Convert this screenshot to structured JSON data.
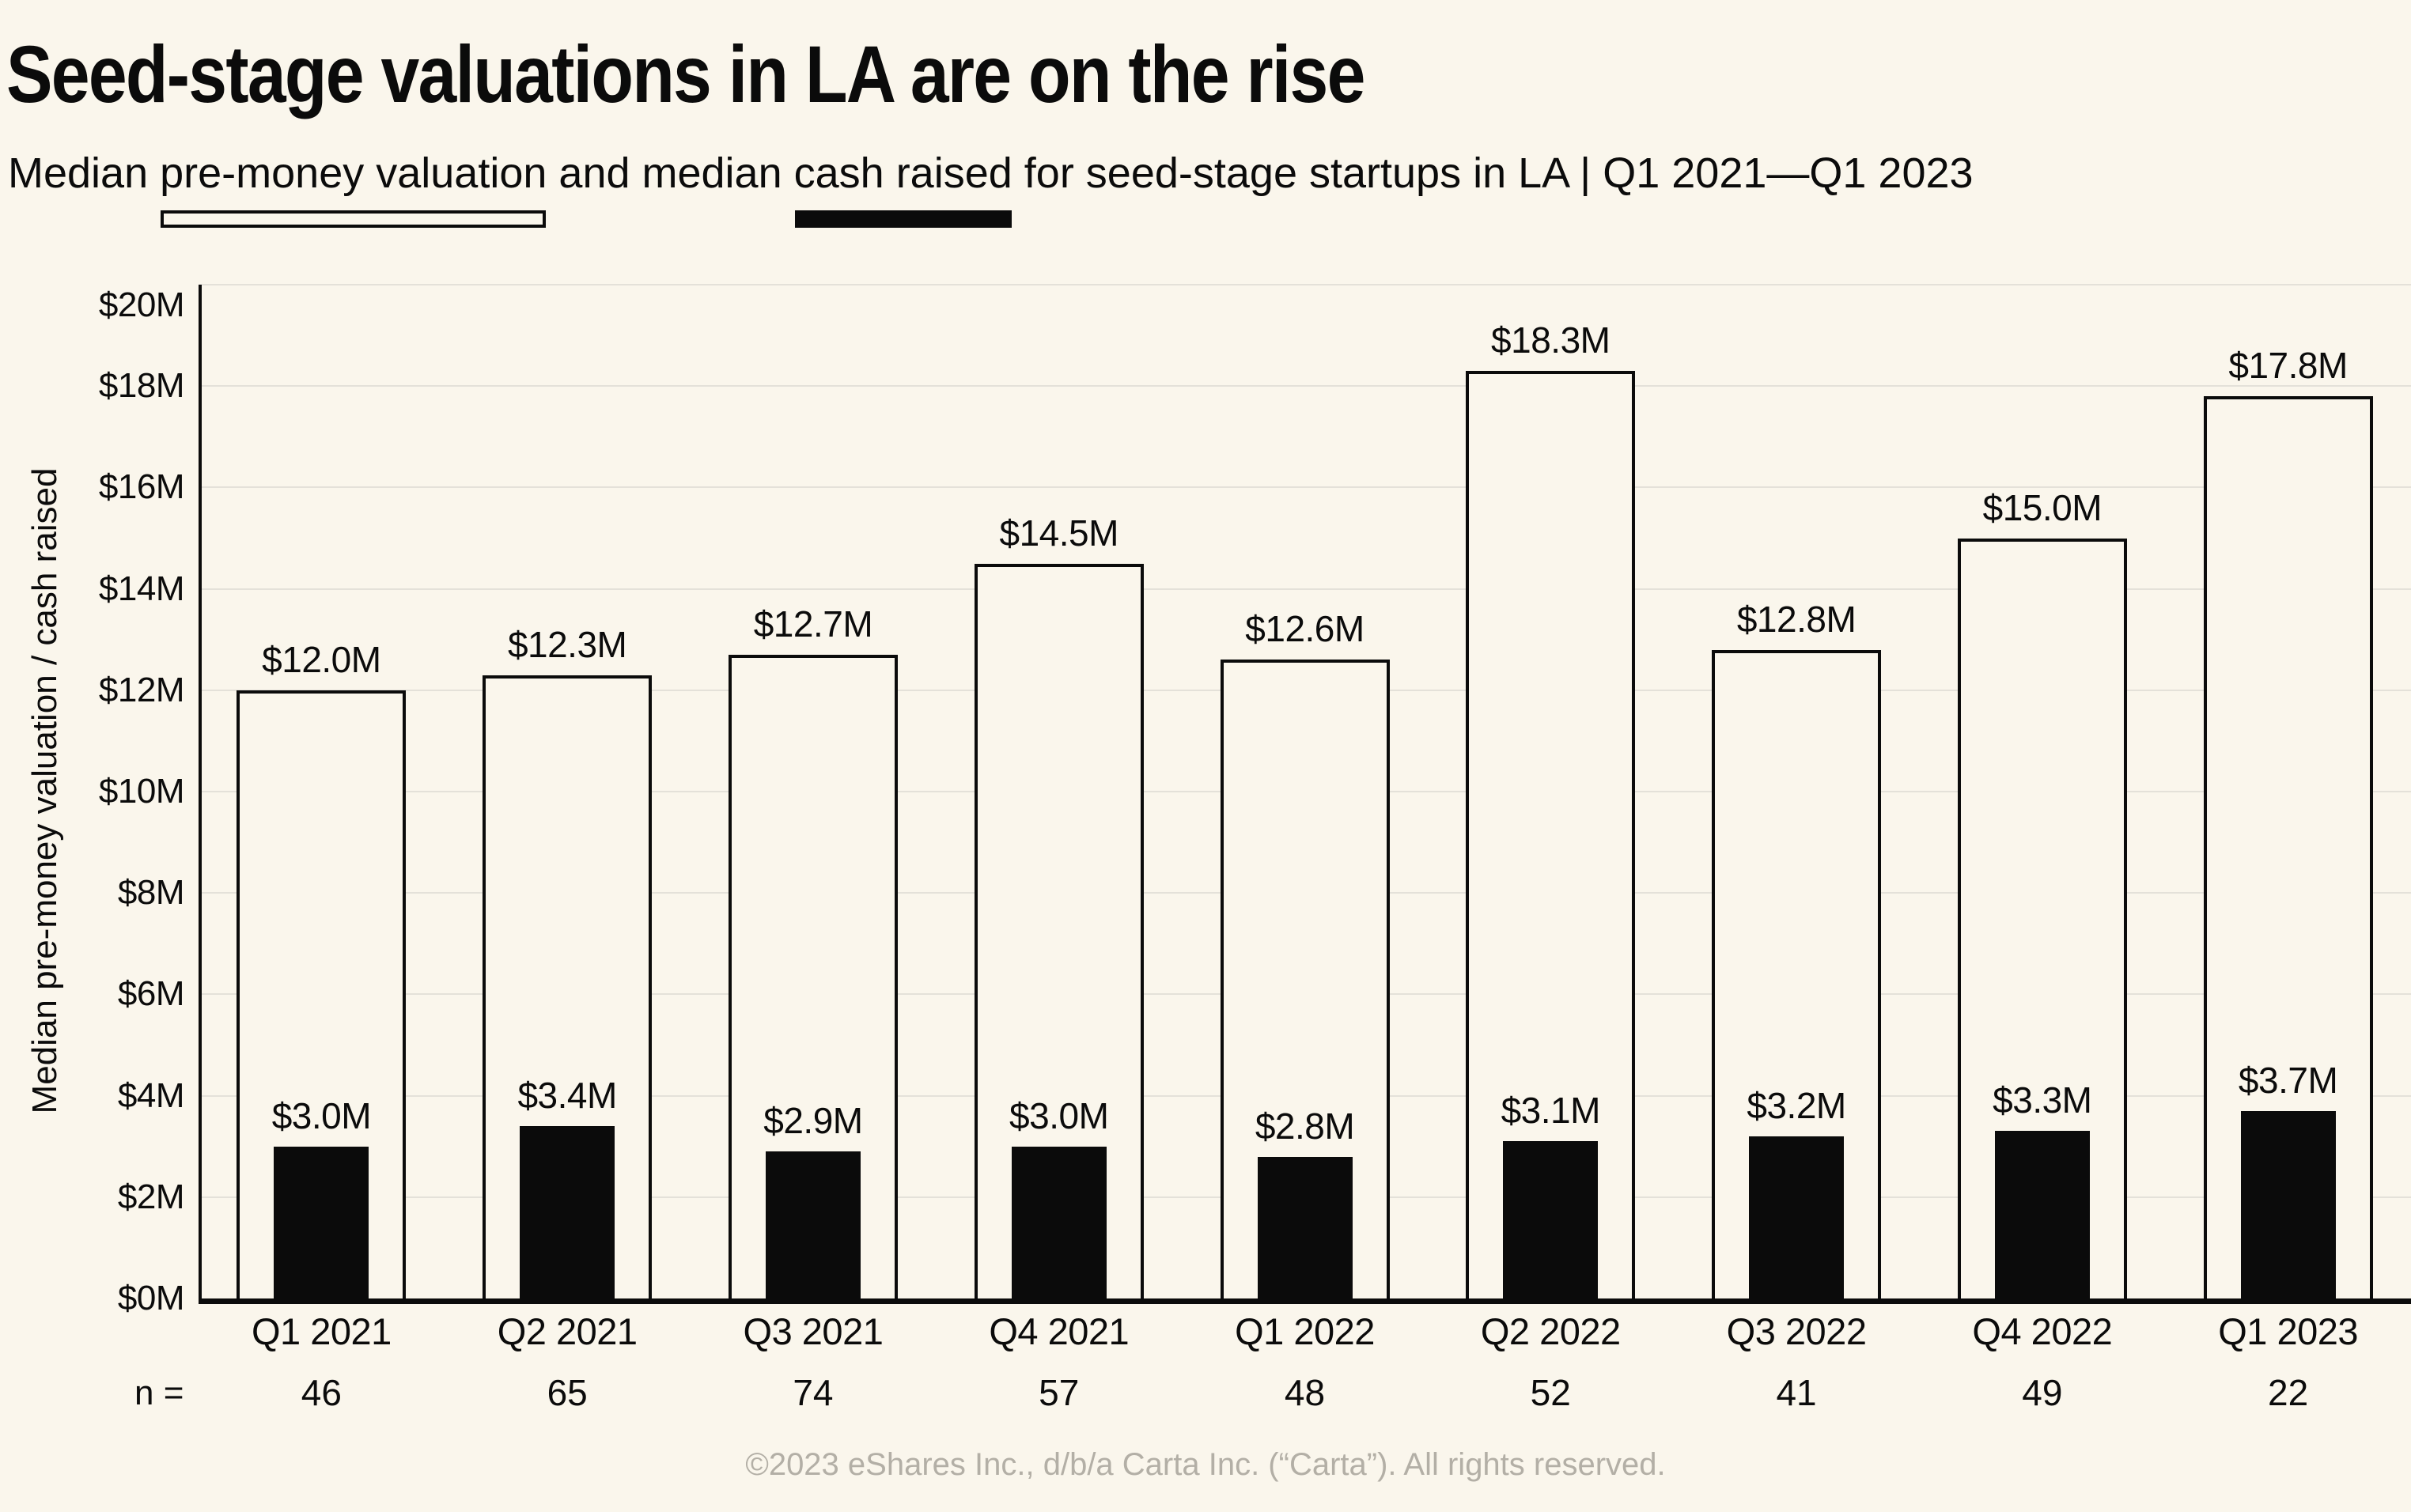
{
  "header": {
    "title": "Seed-stage valuations in LA are on the rise",
    "subtitle": {
      "lead": "Median ",
      "series1": "pre-money valuation",
      "mid": " and median ",
      "series2": "cash raised",
      "tail": " for seed-stage startups in LA | Q1 2021—Q1 2023"
    }
  },
  "chart_data": {
    "type": "bar",
    "title": "Seed-stage valuations in LA are on the rise",
    "subtitle": "Median pre-money valuation and median cash raised for seed-stage startups in LA | Q1 2021—Q1 2023",
    "categories": [
      "Q1 2021",
      "Q2 2021",
      "Q3 2021",
      "Q4 2021",
      "Q1 2022",
      "Q2 2022",
      "Q3 2022",
      "Q4 2022",
      "Q1 2023"
    ],
    "series": [
      {
        "name": "Median pre-money valuation",
        "style": "outline",
        "values": [
          12.0,
          12.3,
          12.7,
          14.5,
          12.6,
          18.3,
          12.8,
          15.0,
          17.8
        ],
        "labels": [
          "$12.0M",
          "$12.3M",
          "$12.7M",
          "$14.5M",
          "$12.6M",
          "$18.3M",
          "$12.8M",
          "$15.0M",
          "$17.8M"
        ]
      },
      {
        "name": "Median cash raised",
        "style": "solid",
        "values": [
          3.0,
          3.4,
          2.9,
          3.0,
          2.8,
          3.1,
          3.2,
          3.3,
          3.7
        ],
        "labels": [
          "$3.0M",
          "$3.4M",
          "$2.9M",
          "$3.0M",
          "$2.8M",
          "$3.1M",
          "$3.2M",
          "$3.3M",
          "$3.7M"
        ]
      }
    ],
    "ylabel": "Median pre-money valuation / cash raised",
    "xlabel": "",
    "ylim": [
      0,
      20
    ],
    "grid": true,
    "legend_position": "underline-in-subtitle",
    "yticks": [
      {
        "label": "$20M",
        "value": 20
      },
      {
        "label": "$18M",
        "value": 18
      },
      {
        "label": "$16M",
        "value": 16
      },
      {
        "label": "$14M",
        "value": 14
      },
      {
        "label": "$12M",
        "value": 12
      },
      {
        "label": "$10M",
        "value": 10
      },
      {
        "label": "$8M",
        "value": 8
      },
      {
        "label": "$6M",
        "value": 6
      },
      {
        "label": "$4M",
        "value": 4
      },
      {
        "label": "$2M",
        "value": 2
      },
      {
        "label": "$0M",
        "value": 0
      }
    ],
    "sample_sizes": {
      "label": "n =",
      "values": [
        46,
        65,
        74,
        57,
        48,
        52,
        41,
        49,
        22
      ]
    }
  },
  "footer": {
    "copyright": "©2023 eShares Inc., d/b/a Carta Inc. (“Carta”). All rights reserved."
  },
  "colors": {
    "background": "#faf6ec",
    "ink": "#0b0b0b",
    "gridline": "#e4e1d9",
    "bar_fill": "#faf6ec",
    "footer_text": "#b3afa6"
  }
}
